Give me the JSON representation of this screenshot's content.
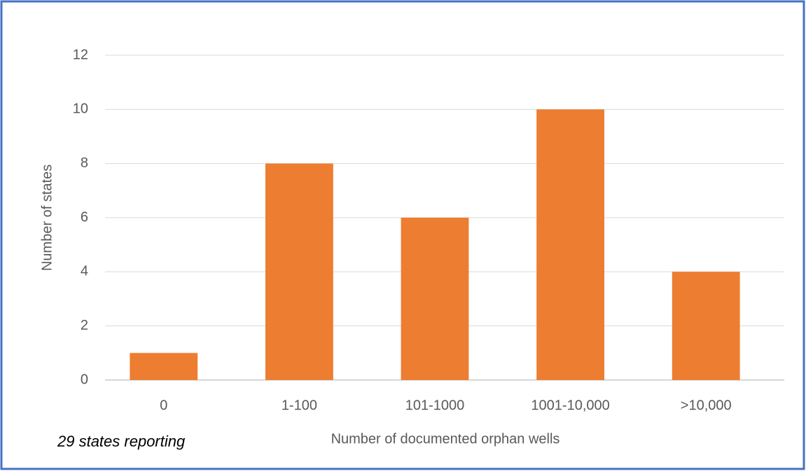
{
  "chart_data": {
    "type": "bar",
    "x_label": "Number of documented orphan wells",
    "y_label": "Number of states",
    "annotation": "29 states reporting",
    "categories": [
      "0",
      "1-100",
      "101-1000",
      "1001-10,000",
      ">10,000"
    ],
    "values": [
      1,
      8,
      6,
      10,
      4
    ],
    "color": "#ed7d31",
    "ylim": [
      0,
      12
    ],
    "yticks": [
      0,
      2,
      4,
      6,
      8,
      10,
      12
    ],
    "grid": true
  }
}
